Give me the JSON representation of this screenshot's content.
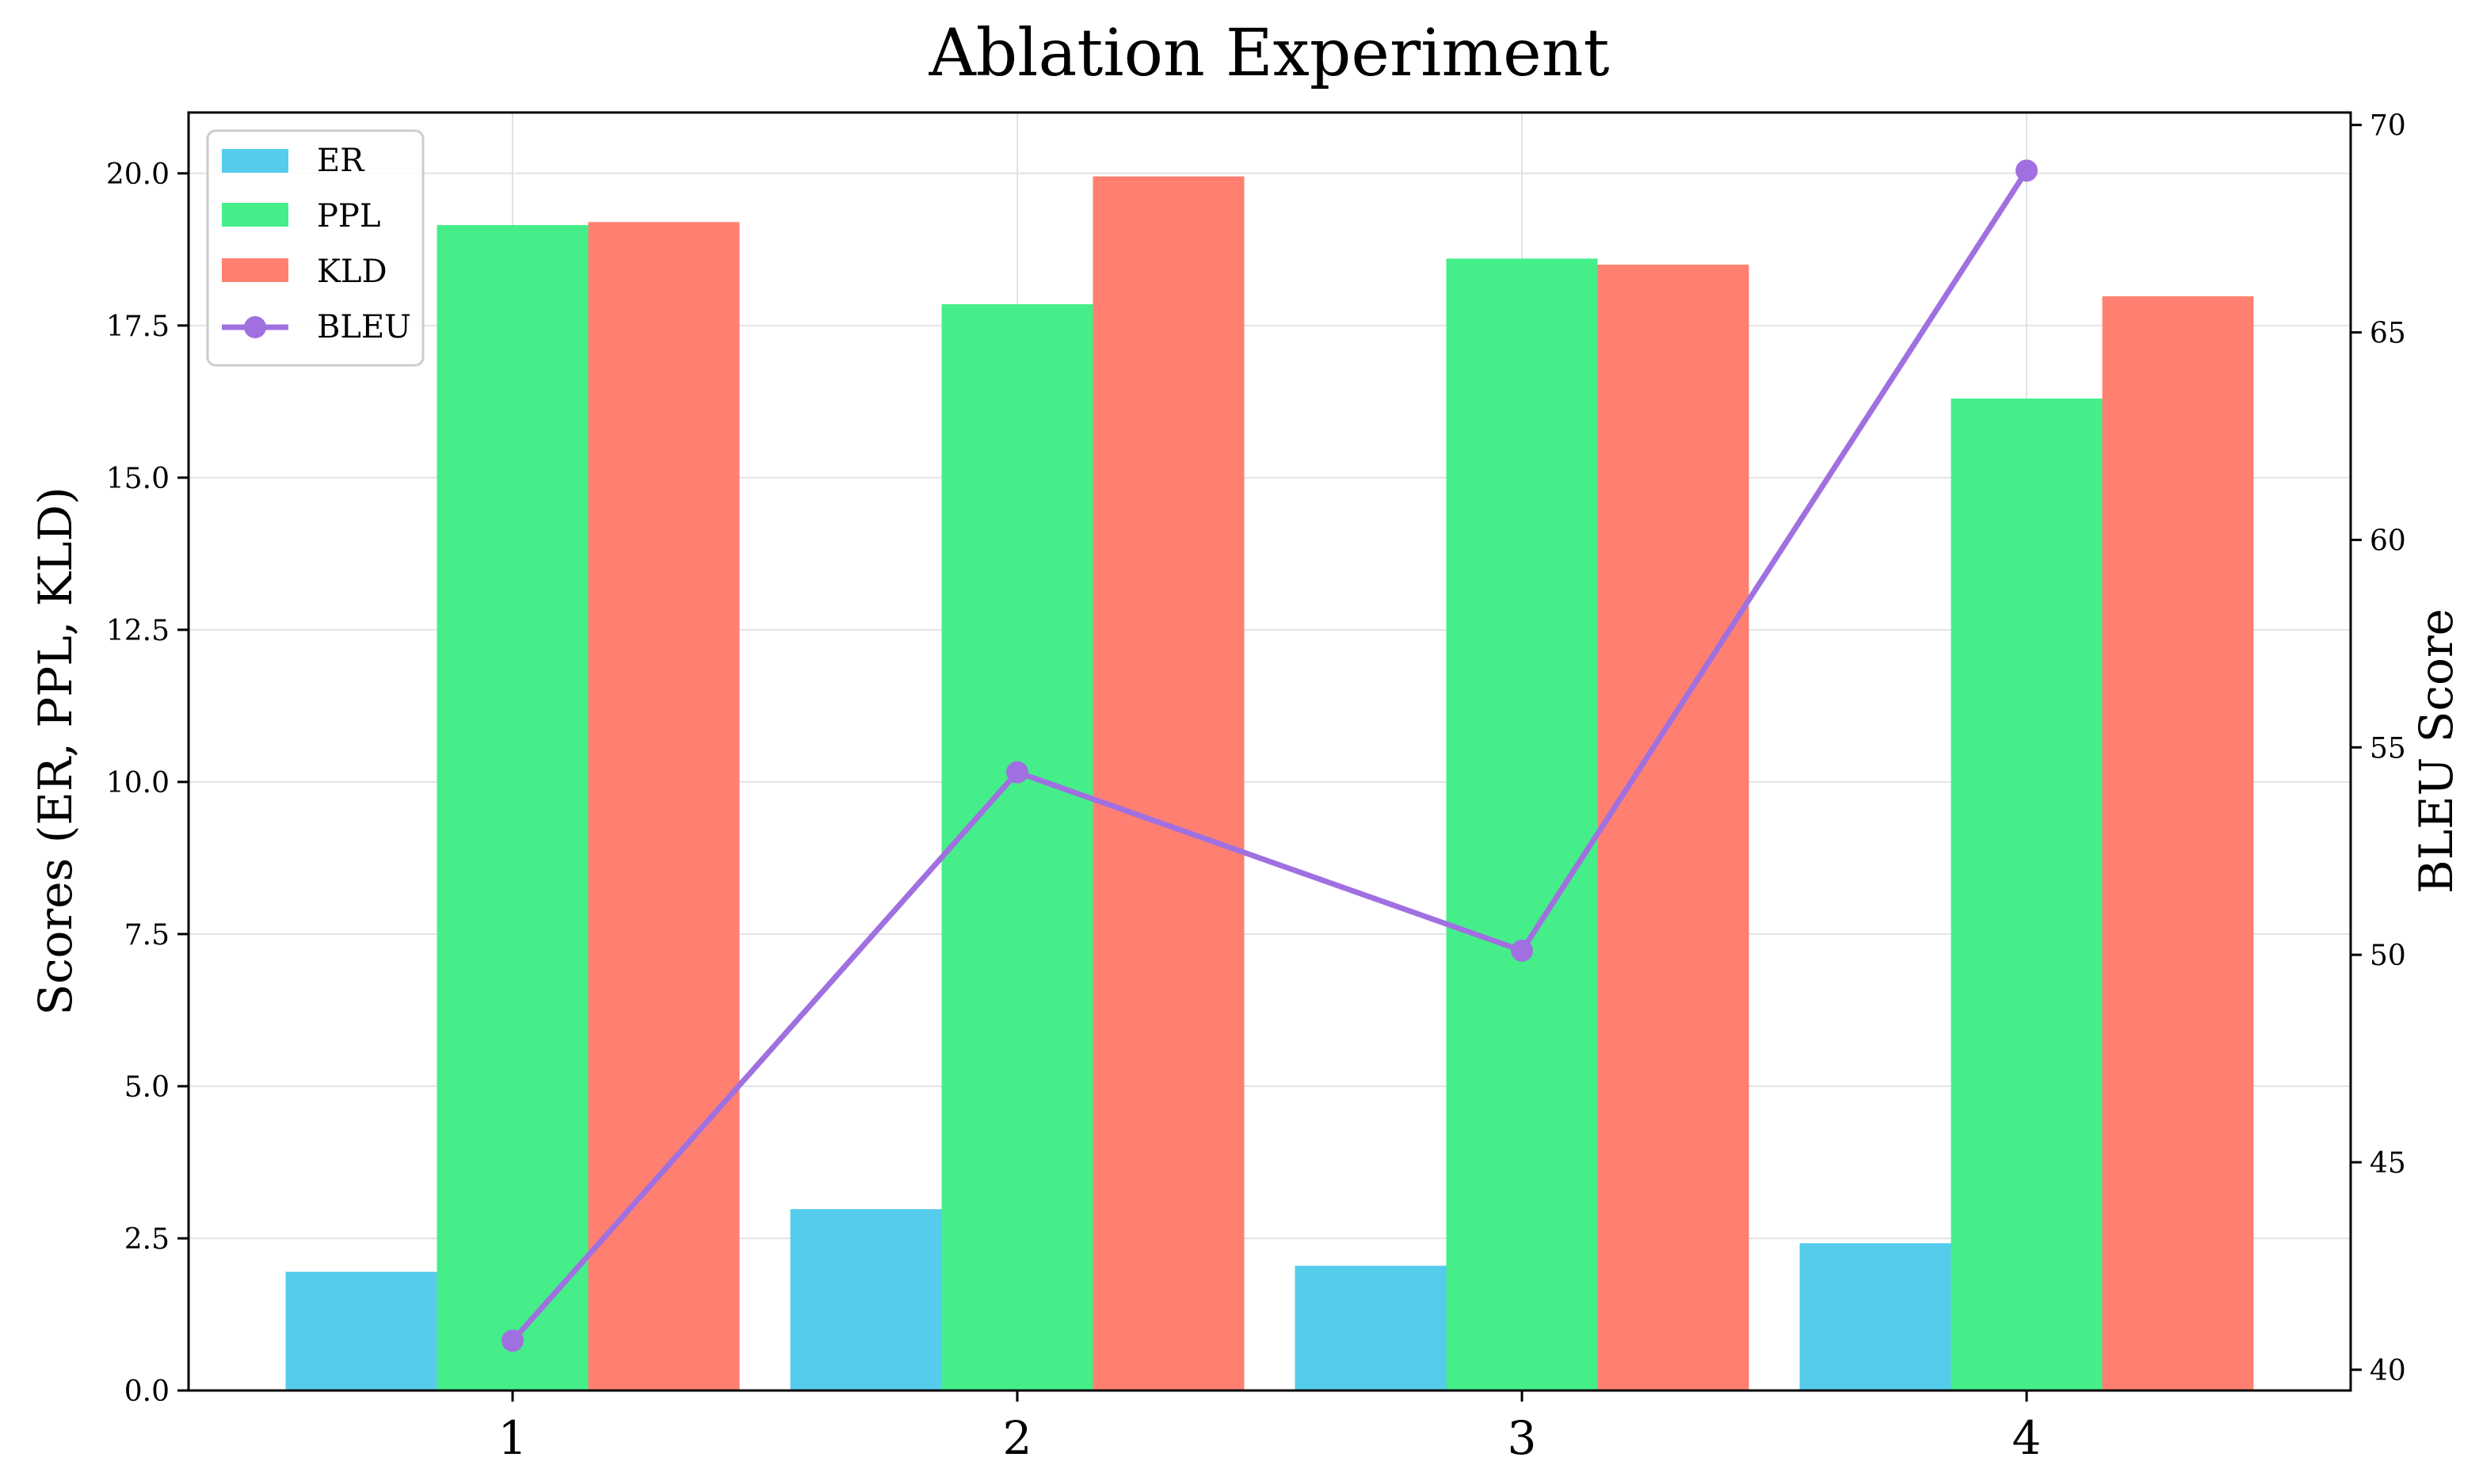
{
  "chart_data": {
    "type": "bar",
    "title": "Ablation Experiment",
    "xlabel": "",
    "ylabel": "Scores (ER, PPL, KLD)",
    "ylabel_right": "BLEU Score",
    "categories": [
      "1",
      "2",
      "3",
      "4"
    ],
    "ylim": [
      0,
      21
    ],
    "ylim_right": [
      39.5,
      70.3
    ],
    "yticks": [
      "0.0",
      "2.5",
      "5.0",
      "7.5",
      "10.0",
      "12.5",
      "15.0",
      "17.5",
      "20.0"
    ],
    "yticks_right": [
      "40",
      "45",
      "50",
      "55",
      "60",
      "65",
      "70"
    ],
    "grid": true,
    "legend_position": "top-left",
    "series": [
      {
        "name": "ER",
        "type": "bar",
        "axis": "left",
        "color": "#56ccec",
        "values": [
          1.95,
          2.98,
          2.05,
          2.42
        ]
      },
      {
        "name": "PPL",
        "type": "bar",
        "axis": "left",
        "color": "#45ee89",
        "values": [
          19.15,
          17.85,
          18.6,
          16.3
        ]
      },
      {
        "name": "KLD",
        "type": "bar",
        "axis": "left",
        "color": "#ff8070",
        "values": [
          19.2,
          19.95,
          18.5,
          17.98
        ]
      },
      {
        "name": "BLEU",
        "type": "line",
        "axis": "right",
        "color": "#a070e0",
        "values": [
          40.7,
          54.4,
          50.1,
          68.9
        ]
      }
    ]
  }
}
